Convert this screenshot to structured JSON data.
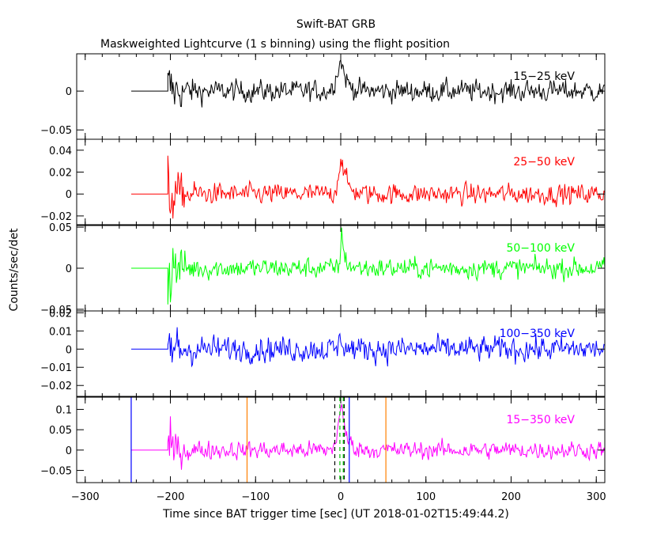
{
  "figure": {
    "title": "Swift-BAT GRB",
    "subtitle": "Maskweighted Lightcurve (1 s binning) using the flight position",
    "ylabel": "Counts/sec/det",
    "xlabel": "Time since BAT trigger time [sec] (UT 2018-01-02T15:49:44.2)"
  },
  "chart_data": [
    {
      "type": "line",
      "band": "15-25 keV",
      "band_label": "15−25 keV",
      "color": "#000000",
      "xlim": [
        -310,
        310
      ],
      "ylim": [
        -0.062,
        0.048
      ],
      "yticks": [
        -0.05,
        0
      ],
      "ytick_labels": [
        "−0.05",
        "0"
      ],
      "flat_before": -246,
      "data_start": -203,
      "noise_sigma": 0.009,
      "early_sigma": 0.022,
      "peak": {
        "t": 1,
        "height": 0.038,
        "rise": 8,
        "decay": 6
      }
    },
    {
      "type": "line",
      "band": "25-50 keV",
      "band_label": "25−50 keV",
      "color": "#ff0000",
      "xlim": [
        -310,
        310
      ],
      "ylim": [
        -0.028,
        0.05
      ],
      "yticks": [
        -0.02,
        0,
        0.02,
        0.04
      ],
      "ytick_labels": [
        "−0.02",
        "0",
        "0.02",
        "0.04"
      ],
      "flat_before": -246,
      "data_start": -203,
      "noise_sigma": 0.006,
      "early_sigma": 0.018,
      "peak": {
        "t": 1,
        "height": 0.032,
        "rise": 5,
        "decay": 6
      }
    },
    {
      "type": "line",
      "band": "50-100 keV",
      "band_label": "50−100 keV",
      "color": "#00ff00",
      "xlim": [
        -310,
        310
      ],
      "ylim": [
        -0.052,
        0.052
      ],
      "yticks": [
        -0.05,
        0,
        0.05
      ],
      "ytick_labels": [
        "−0.05",
        "0",
        "0.05"
      ],
      "flat_before": -246,
      "data_start": -203,
      "noise_sigma": 0.008,
      "early_sigma": 0.03,
      "peak": {
        "t": 1,
        "height": 0.04,
        "rise": 2,
        "decay": 4
      }
    },
    {
      "type": "line",
      "band": "100-350 keV",
      "band_label": "100−350 keV",
      "color": "#0000ff",
      "xlim": [
        -310,
        310
      ],
      "ylim": [
        -0.026,
        0.021
      ],
      "yticks": [
        -0.02,
        -0.01,
        0,
        0.01,
        0.02
      ],
      "ytick_labels": [
        "−0.02",
        "−0.01",
        "0",
        "0.01",
        "0.02"
      ],
      "flat_before": -246,
      "data_start": -203,
      "noise_sigma": 0.0045,
      "early_sigma": 0.011,
      "peak": {
        "t": 1,
        "height": 0.006,
        "rise": 3,
        "decay": 3
      }
    },
    {
      "type": "line",
      "band": "15-350 keV",
      "band_label": "15−350 keV",
      "color": "#ff00ff",
      "xlim": [
        -310,
        310
      ],
      "ylim": [
        -0.08,
        0.13
      ],
      "yticks": [
        -0.05,
        0,
        0.05,
        0.1
      ],
      "ytick_labels": [
        "−0.05",
        "0",
        "0.05",
        "0.1"
      ],
      "flat_before": -246,
      "data_start": -203,
      "noise_sigma": 0.014,
      "early_sigma": 0.035,
      "peak": {
        "t": 1,
        "height": 0.1,
        "rise": 6,
        "decay": 6
      },
      "markers": [
        {
          "t": -246,
          "color": "#0000ff",
          "style": "solid"
        },
        {
          "t": -110,
          "color": "#ff8000",
          "style": "solid"
        },
        {
          "t": 53,
          "color": "#ff8000",
          "style": "solid"
        },
        {
          "t": 10,
          "color": "#0000ff",
          "style": "solid"
        },
        {
          "t": -7,
          "color": "#000000",
          "style": "dashed"
        },
        {
          "t": 4,
          "color": "#000000",
          "style": "dashed"
        },
        {
          "t": -1,
          "color": "#00c000",
          "style": "dashed"
        },
        {
          "t": 3,
          "color": "#00c000",
          "style": "dashed"
        }
      ]
    }
  ],
  "xaxis": {
    "ticks": [
      -300,
      -200,
      -100,
      0,
      100,
      200,
      300
    ],
    "tick_labels": [
      "−300",
      "−200",
      "−100",
      "0",
      "100",
      "200",
      "300"
    ]
  }
}
